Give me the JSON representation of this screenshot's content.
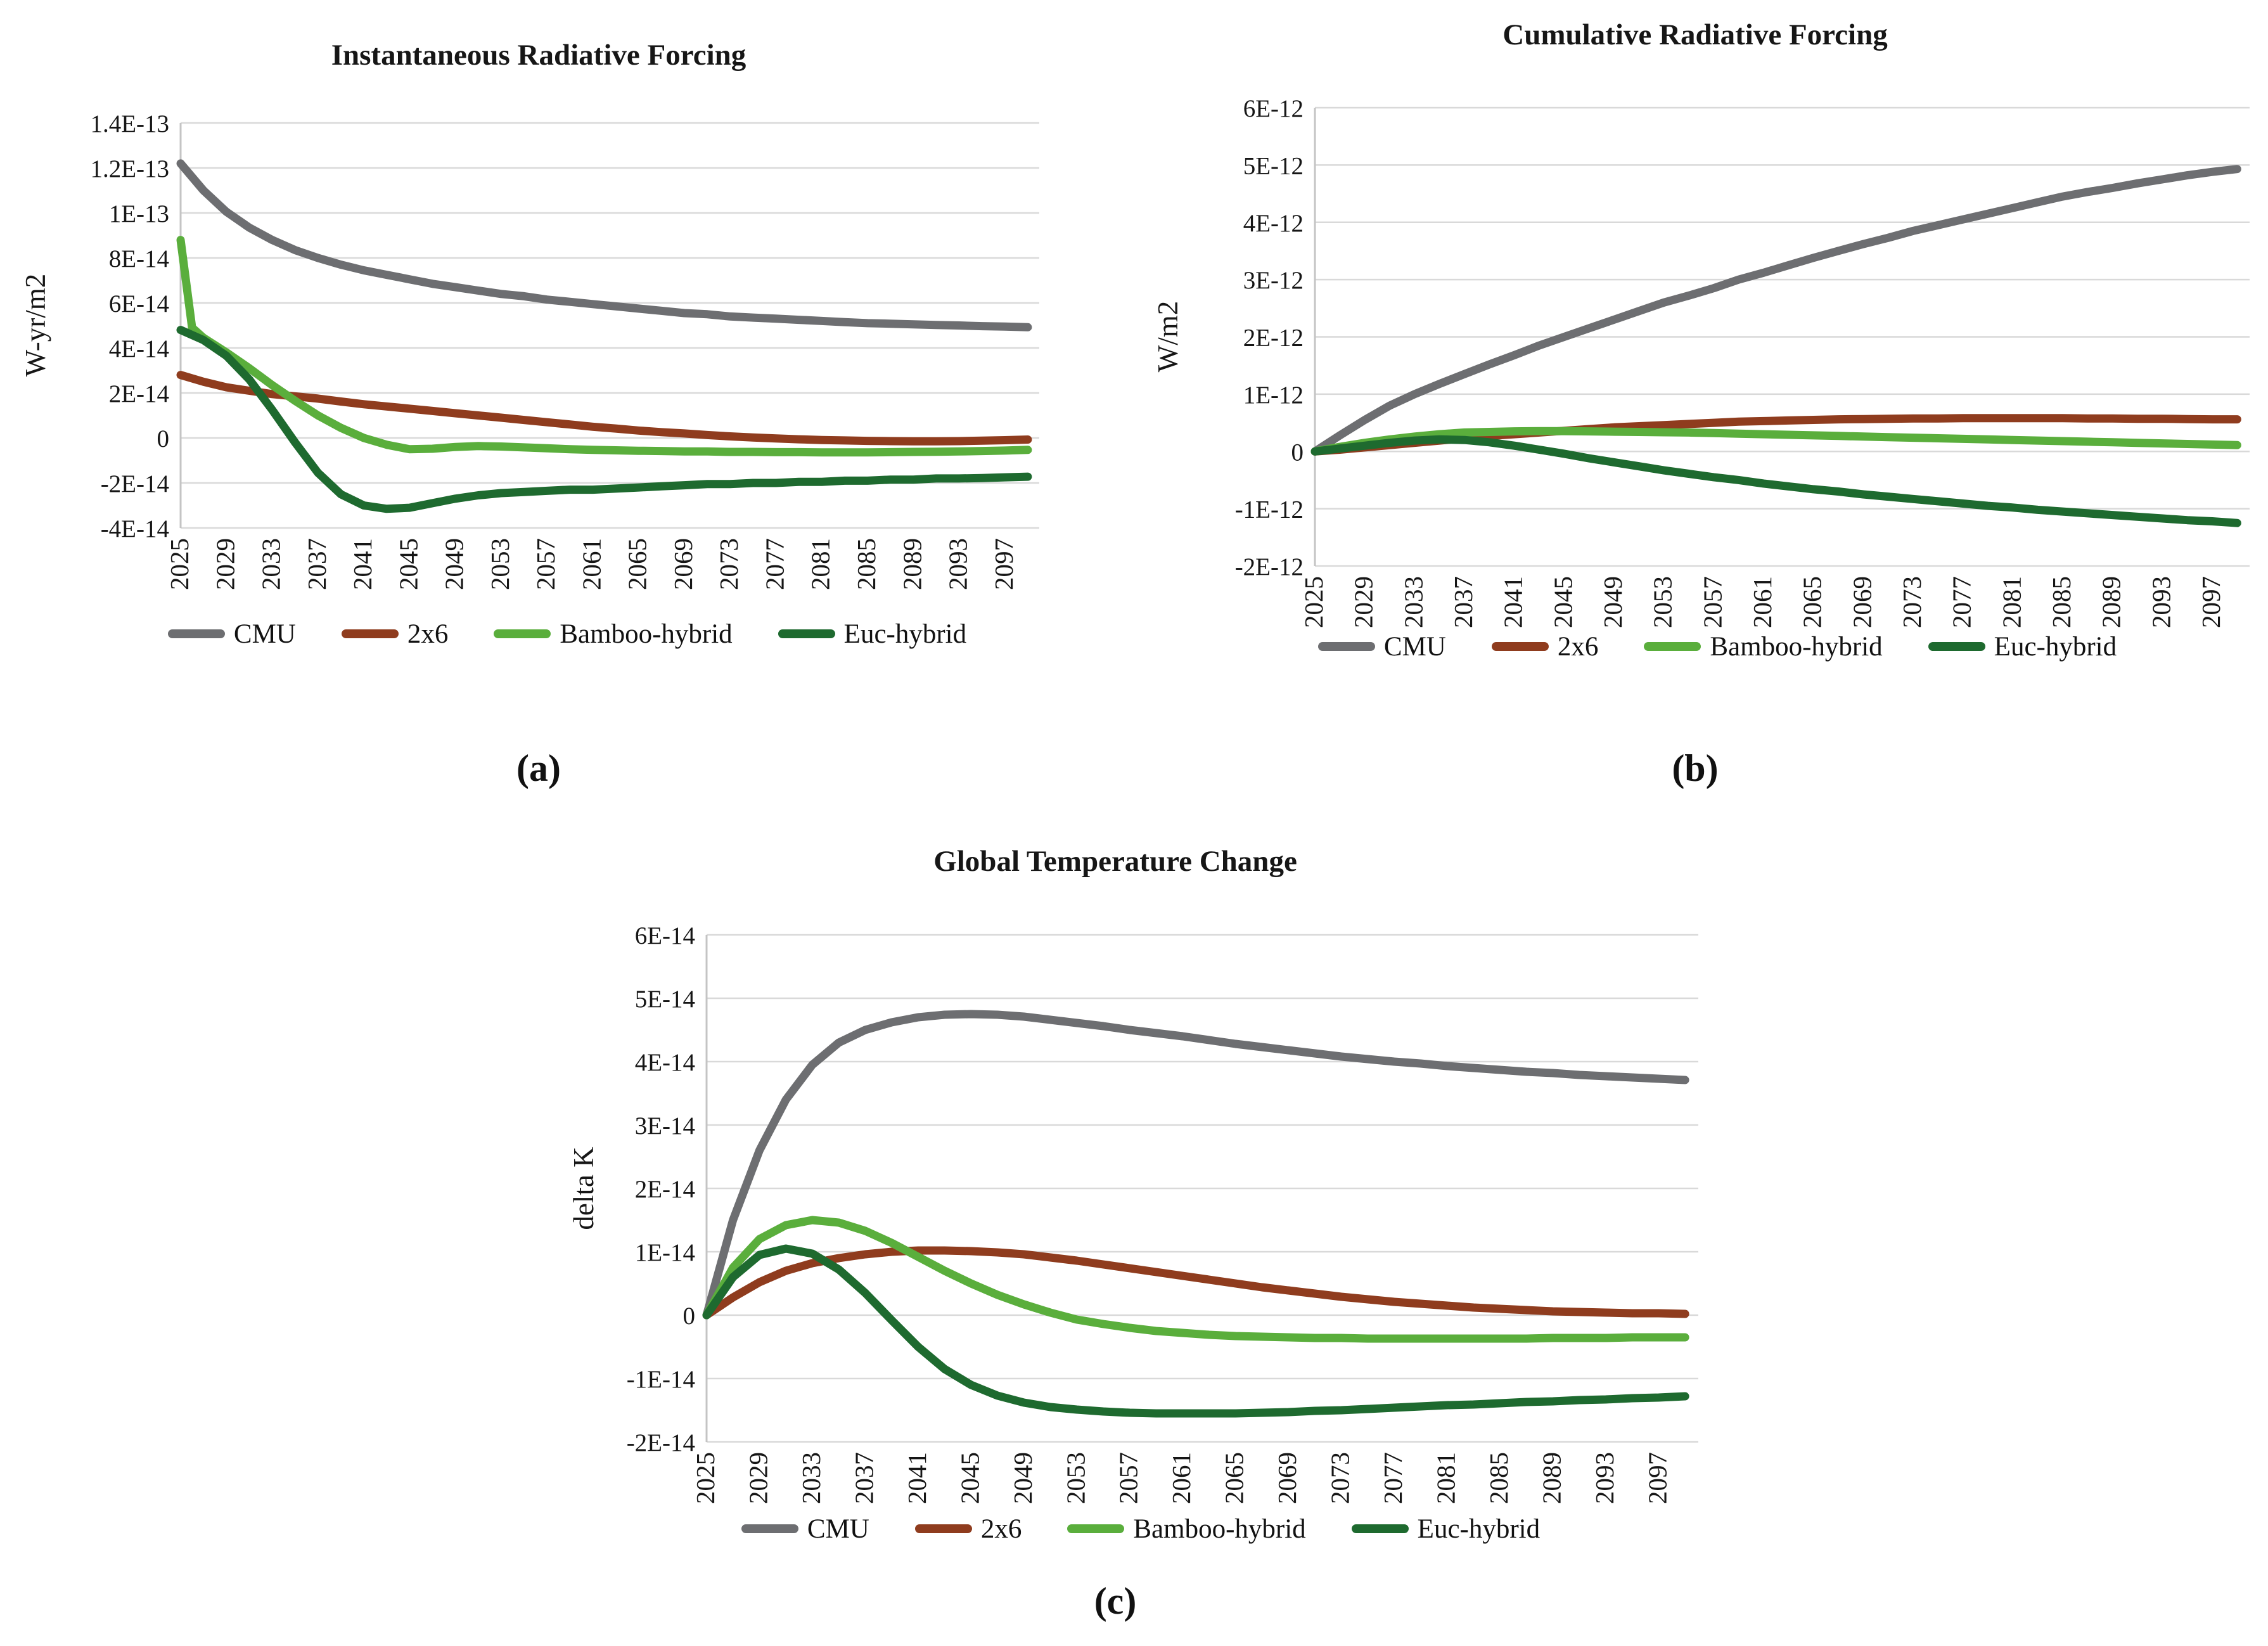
{
  "figure": {
    "background": "#ffffff",
    "text_color": "#161616",
    "grid_color": "#d9d9d9",
    "axis_color": "#c4c4c4"
  },
  "legend_series": [
    "CMU",
    "2x6",
    "Bamboo-hybrid",
    "Euc-hybrid"
  ],
  "series_colors": {
    "CMU": "#6d6e71",
    "2x6": "#8f3c1e",
    "Bamboo-hybrid": "#5aae3c",
    "Euc-hybrid": "#1e6a2f"
  },
  "chart_data": [
    {
      "type": "line",
      "title": "Instantaneous Radiative Forcing",
      "caption": "(a)",
      "ylabel": "W-yr/m2",
      "y_unit_multiplier": 1e-14,
      "ylim": [
        -4,
        14
      ],
      "ytick_labels": [
        "1.4E-13",
        "1.2E-13",
        "1E-13",
        "8E-14",
        "6E-14",
        "4E-14",
        "2E-14",
        "0",
        "-2E-14",
        "-4E-14"
      ],
      "xlim": [
        2025,
        2100
      ],
      "xticks": [
        2025,
        2029,
        2033,
        2037,
        2041,
        2045,
        2049,
        2053,
        2057,
        2061,
        2065,
        2069,
        2073,
        2077,
        2081,
        2085,
        2089,
        2093,
        2097
      ],
      "grid": true,
      "legend_position": "bottom",
      "x": [
        2025,
        2027,
        2029,
        2031,
        2033,
        2035,
        2037,
        2039,
        2041,
        2043,
        2045,
        2047,
        2049,
        2051,
        2053,
        2055,
        2057,
        2059,
        2061,
        2063,
        2065,
        2067,
        2069,
        2071,
        2073,
        2075,
        2077,
        2079,
        2081,
        2083,
        2085,
        2087,
        2089,
        2091,
        2093,
        2095,
        2097,
        2099
      ],
      "series": [
        {
          "name": "CMU",
          "color": "#6d6e71",
          "y": [
            12.2,
            11.0,
            10.05,
            9.35,
            8.8,
            8.35,
            8.0,
            7.7,
            7.45,
            7.25,
            7.05,
            6.85,
            6.7,
            6.55,
            6.4,
            6.3,
            6.15,
            6.05,
            5.95,
            5.85,
            5.75,
            5.65,
            5.55,
            5.5,
            5.4,
            5.35,
            5.3,
            5.25,
            5.2,
            5.15,
            5.1,
            5.08,
            5.05,
            5.02,
            5.0,
            4.97,
            4.95,
            4.92
          ]
        },
        {
          "name": "2x6",
          "color": "#8f3c1e",
          "y": [
            2.8,
            2.5,
            2.25,
            2.1,
            1.95,
            1.85,
            1.75,
            1.62,
            1.5,
            1.4,
            1.3,
            1.2,
            1.1,
            1.0,
            0.9,
            0.8,
            0.7,
            0.6,
            0.5,
            0.42,
            0.33,
            0.26,
            0.2,
            0.13,
            0.07,
            0.02,
            -0.02,
            -0.06,
            -0.09,
            -0.11,
            -0.13,
            -0.14,
            -0.15,
            -0.15,
            -0.14,
            -0.12,
            -0.1,
            -0.07
          ]
        },
        {
          "name": "Bamboo-hybrid",
          "color": "#5aae3c",
          "x": [
            2025,
            2026,
            2027,
            2029,
            2031,
            2033,
            2035,
            2037,
            2039,
            2041,
            2043,
            2045,
            2047,
            2049,
            2051,
            2053,
            2055,
            2057,
            2059,
            2061,
            2063,
            2065,
            2067,
            2069,
            2071,
            2073,
            2075,
            2077,
            2079,
            2081,
            2083,
            2085,
            2087,
            2089,
            2091,
            2093,
            2095,
            2097,
            2099
          ],
          "y": [
            8.8,
            4.9,
            4.45,
            3.8,
            3.1,
            2.35,
            1.65,
            1.0,
            0.45,
            0.0,
            -0.3,
            -0.5,
            -0.48,
            -0.4,
            -0.36,
            -0.38,
            -0.42,
            -0.46,
            -0.5,
            -0.53,
            -0.55,
            -0.57,
            -0.58,
            -0.6,
            -0.6,
            -0.62,
            -0.62,
            -0.63,
            -0.63,
            -0.64,
            -0.64,
            -0.64,
            -0.63,
            -0.62,
            -0.61,
            -0.6,
            -0.58,
            -0.56,
            -0.53
          ]
        },
        {
          "name": "Euc-hybrid",
          "color": "#1e6a2f",
          "y": [
            4.8,
            4.35,
            3.65,
            2.6,
            1.25,
            -0.2,
            -1.55,
            -2.5,
            -3.0,
            -3.15,
            -3.1,
            -2.9,
            -2.7,
            -2.55,
            -2.45,
            -2.4,
            -2.35,
            -2.3,
            -2.3,
            -2.25,
            -2.2,
            -2.15,
            -2.1,
            -2.05,
            -2.05,
            -2.0,
            -2.0,
            -1.95,
            -1.95,
            -1.9,
            -1.9,
            -1.85,
            -1.85,
            -1.8,
            -1.8,
            -1.78,
            -1.75,
            -1.72
          ]
        }
      ]
    },
    {
      "type": "line",
      "title": "Cumulative Radiative Forcing",
      "caption": "(b)",
      "ylabel": "W/m2",
      "y_unit_multiplier": 1e-12,
      "ylim": [
        -2,
        6
      ],
      "ytick_labels": [
        "6E-12",
        "5E-12",
        "4E-12",
        "3E-12",
        "2E-12",
        "1E-12",
        "0",
        "-1E-12",
        "-2E-12"
      ],
      "xlim": [
        2025,
        2100
      ],
      "xticks": [
        2025,
        2029,
        2033,
        2037,
        2041,
        2045,
        2049,
        2053,
        2057,
        2061,
        2065,
        2069,
        2073,
        2077,
        2081,
        2085,
        2089,
        2093,
        2097
      ],
      "grid": true,
      "legend_position": "bottom",
      "x": [
        2025,
        2027,
        2029,
        2031,
        2033,
        2035,
        2037,
        2039,
        2041,
        2043,
        2045,
        2047,
        2049,
        2051,
        2053,
        2055,
        2057,
        2059,
        2061,
        2063,
        2065,
        2067,
        2069,
        2071,
        2073,
        2075,
        2077,
        2079,
        2081,
        2083,
        2085,
        2087,
        2089,
        2091,
        2093,
        2095,
        2097,
        2099
      ],
      "series": [
        {
          "name": "CMU",
          "color": "#6d6e71",
          "y": [
            0,
            0.28,
            0.55,
            0.8,
            1.0,
            1.18,
            1.35,
            1.52,
            1.68,
            1.85,
            2.0,
            2.15,
            2.3,
            2.45,
            2.6,
            2.72,
            2.85,
            3.0,
            3.12,
            3.25,
            3.38,
            3.5,
            3.62,
            3.73,
            3.85,
            3.95,
            4.05,
            4.15,
            4.25,
            4.35,
            4.45,
            4.53,
            4.6,
            4.68,
            4.75,
            4.82,
            4.88,
            4.93
          ]
        },
        {
          "name": "2x6",
          "color": "#8f3c1e",
          "y": [
            0,
            0.03,
            0.07,
            0.11,
            0.15,
            0.19,
            0.23,
            0.27,
            0.3,
            0.33,
            0.36,
            0.39,
            0.42,
            0.44,
            0.46,
            0.48,
            0.5,
            0.52,
            0.53,
            0.54,
            0.55,
            0.56,
            0.565,
            0.57,
            0.575,
            0.575,
            0.58,
            0.58,
            0.58,
            0.58,
            0.58,
            0.575,
            0.575,
            0.57,
            0.57,
            0.565,
            0.56,
            0.56
          ]
        },
        {
          "name": "Bamboo-hybrid",
          "color": "#5aae3c",
          "y": [
            0,
            0.08,
            0.15,
            0.21,
            0.26,
            0.3,
            0.33,
            0.34,
            0.35,
            0.355,
            0.355,
            0.35,
            0.345,
            0.34,
            0.335,
            0.33,
            0.32,
            0.31,
            0.3,
            0.29,
            0.28,
            0.27,
            0.26,
            0.25,
            0.24,
            0.23,
            0.22,
            0.21,
            0.2,
            0.19,
            0.18,
            0.17,
            0.16,
            0.15,
            0.14,
            0.13,
            0.12,
            0.11
          ]
        },
        {
          "name": "Euc-hybrid",
          "color": "#1e6a2f",
          "y": [
            0,
            0.05,
            0.1,
            0.15,
            0.19,
            0.21,
            0.2,
            0.16,
            0.1,
            0.03,
            -0.04,
            -0.12,
            -0.19,
            -0.26,
            -0.33,
            -0.39,
            -0.45,
            -0.5,
            -0.56,
            -0.61,
            -0.66,
            -0.7,
            -0.75,
            -0.79,
            -0.83,
            -0.87,
            -0.91,
            -0.95,
            -0.98,
            -1.02,
            -1.05,
            -1.08,
            -1.11,
            -1.14,
            -1.17,
            -1.2,
            -1.22,
            -1.25
          ]
        }
      ]
    },
    {
      "type": "line",
      "title": "Global Temperature Change",
      "caption": "(c)",
      "ylabel": "delta K",
      "y_unit_multiplier": 1e-14,
      "ylim": [
        -2,
        6
      ],
      "ytick_labels": [
        "6E-14",
        "5E-14",
        "4E-14",
        "3E-14",
        "2E-14",
        "1E-14",
        "0",
        "-1E-14",
        "-2E-14"
      ],
      "xlim": [
        2025,
        2100
      ],
      "xticks": [
        2025,
        2029,
        2033,
        2037,
        2041,
        2045,
        2049,
        2053,
        2057,
        2061,
        2065,
        2069,
        2073,
        2077,
        2081,
        2085,
        2089,
        2093,
        2097
      ],
      "grid": true,
      "legend_position": "bottom",
      "x": [
        2025,
        2027,
        2029,
        2031,
        2033,
        2035,
        2037,
        2039,
        2041,
        2043,
        2045,
        2047,
        2049,
        2051,
        2053,
        2055,
        2057,
        2059,
        2061,
        2063,
        2065,
        2067,
        2069,
        2071,
        2073,
        2075,
        2077,
        2079,
        2081,
        2083,
        2085,
        2087,
        2089,
        2091,
        2093,
        2095,
        2097,
        2099
      ],
      "series": [
        {
          "name": "CMU",
          "color": "#6d6e71",
          "y": [
            0,
            1.5,
            2.6,
            3.4,
            3.95,
            4.3,
            4.5,
            4.62,
            4.7,
            4.74,
            4.75,
            4.74,
            4.71,
            4.66,
            4.61,
            4.56,
            4.5,
            4.45,
            4.4,
            4.34,
            4.28,
            4.23,
            4.18,
            4.13,
            4.08,
            4.04,
            4.0,
            3.97,
            3.93,
            3.9,
            3.87,
            3.84,
            3.82,
            3.79,
            3.77,
            3.75,
            3.73,
            3.71
          ]
        },
        {
          "name": "2x6",
          "color": "#8f3c1e",
          "y": [
            0,
            0.28,
            0.52,
            0.7,
            0.82,
            0.9,
            0.96,
            1.0,
            1.02,
            1.02,
            1.01,
            0.99,
            0.96,
            0.91,
            0.86,
            0.8,
            0.74,
            0.68,
            0.62,
            0.56,
            0.5,
            0.44,
            0.39,
            0.34,
            0.29,
            0.25,
            0.21,
            0.18,
            0.15,
            0.12,
            0.1,
            0.08,
            0.06,
            0.05,
            0.04,
            0.03,
            0.03,
            0.02
          ]
        },
        {
          "name": "Bamboo-hybrid",
          "color": "#5aae3c",
          "y": [
            0,
            0.75,
            1.2,
            1.42,
            1.5,
            1.46,
            1.33,
            1.14,
            0.92,
            0.7,
            0.5,
            0.32,
            0.17,
            0.04,
            -0.07,
            -0.14,
            -0.2,
            -0.25,
            -0.28,
            -0.31,
            -0.33,
            -0.34,
            -0.35,
            -0.36,
            -0.36,
            -0.37,
            -0.37,
            -0.37,
            -0.37,
            -0.37,
            -0.37,
            -0.37,
            -0.36,
            -0.36,
            -0.36,
            -0.35,
            -0.35,
            -0.35
          ]
        },
        {
          "name": "Euc-hybrid",
          "color": "#1e6a2f",
          "y": [
            0,
            0.6,
            0.95,
            1.05,
            0.97,
            0.72,
            0.35,
            -0.08,
            -0.5,
            -0.85,
            -1.1,
            -1.27,
            -1.38,
            -1.45,
            -1.49,
            -1.52,
            -1.54,
            -1.55,
            -1.55,
            -1.55,
            -1.55,
            -1.54,
            -1.53,
            -1.51,
            -1.5,
            -1.48,
            -1.46,
            -1.44,
            -1.42,
            -1.41,
            -1.39,
            -1.37,
            -1.36,
            -1.34,
            -1.33,
            -1.31,
            -1.3,
            -1.28
          ]
        }
      ]
    }
  ]
}
